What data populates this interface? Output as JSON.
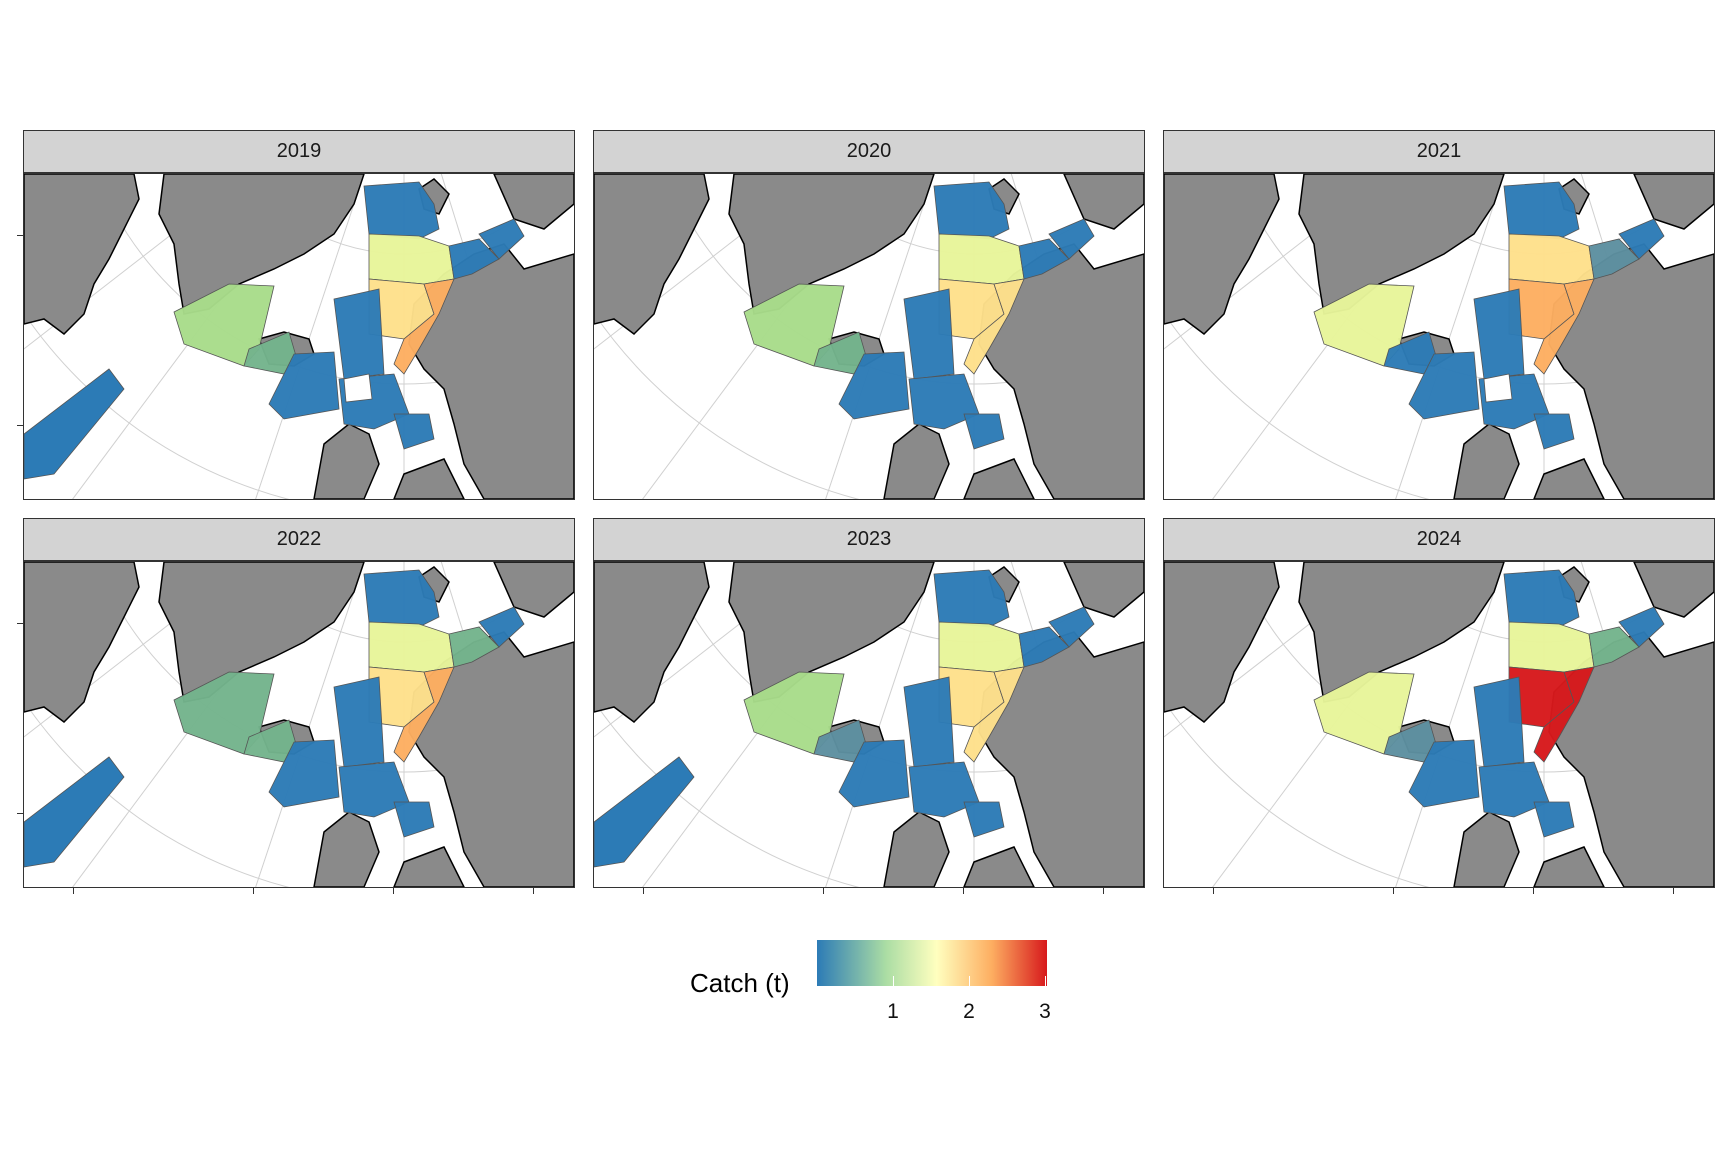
{
  "panels": [
    {
      "year": "2019"
    },
    {
      "year": "2020"
    },
    {
      "year": "2021"
    },
    {
      "year": "2022"
    },
    {
      "year": "2023"
    },
    {
      "year": "2024"
    }
  ],
  "legend": {
    "title": "Catch (t)",
    "breaks": [
      "1",
      "2",
      "3"
    ],
    "colors": [
      "#2c7bb6",
      "#abdda4",
      "#ffffbf",
      "#fdae61",
      "#d7191c"
    ]
  },
  "map_style": {
    "land_color": "#8a8a8a",
    "sea_color": "#ffffff",
    "graticule_color": "#d0d0d0"
  }
}
